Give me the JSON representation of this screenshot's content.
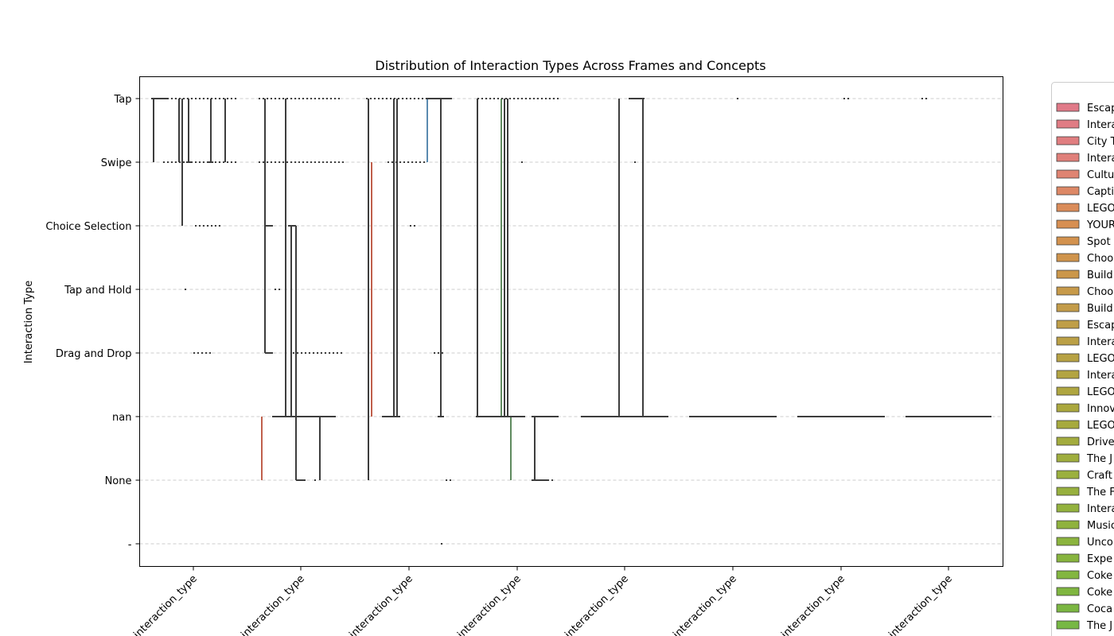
{
  "chart_data": {
    "type": "box",
    "title": "Distribution of Interaction Types Across Frames and Concepts",
    "ylabel": "Interaction Type",
    "xlabel": "",
    "y_categories": [
      "Tap",
      "Swipe",
      "Choice Selection",
      "Tap and Hold",
      "Drag and Drop",
      "nan",
      "None",
      "-"
    ],
    "x_tick_labels": [
      "interaction_type",
      "interaction_type",
      "interaction_type",
      "interaction_type",
      "interaction_type",
      "interaction_type",
      "interaction_type",
      "interaction_type"
    ],
    "grid": "horizontal dashed",
    "legend_placement": "right, clipped",
    "legend_entries": [
      "Escap",
      "Intera",
      "City T",
      "Intera",
      "Cultu",
      "Capti",
      "LEGO",
      "YOUR",
      "Spot",
      "Choo",
      "Build",
      "Choo",
      "Build",
      "Escap",
      "Intera",
      "LEGO",
      "Intera",
      "LEGO",
      "Innov",
      "LEGO",
      "Drive",
      "The J",
      "Craft",
      "The F",
      "Intera",
      "Music",
      "Unco",
      "Expe",
      "Coke",
      "Coke",
      "Coca",
      "The J"
    ],
    "legend_colors": [
      "#e07a88",
      "#e07c84",
      "#e07e80",
      "#e0807a",
      "#df8472",
      "#dd8866",
      "#da8c5a",
      "#d78f52",
      "#d3924e",
      "#cf944c",
      "#cb974a",
      "#c79a4a",
      "#c39c4a",
      "#bf9e48",
      "#bba046",
      "#b7a244",
      "#b3a442",
      "#afa640",
      "#aba83e",
      "#a7aa3e",
      "#a3ac3e",
      "#9fae3e",
      "#9bb03e",
      "#97b03e",
      "#93b23e",
      "#8fb23e",
      "#8bb43e",
      "#87b43e",
      "#83b640",
      "#7fb640",
      "#7bb642",
      "#77b844"
    ],
    "box_color": "#3d3d3d"
  }
}
